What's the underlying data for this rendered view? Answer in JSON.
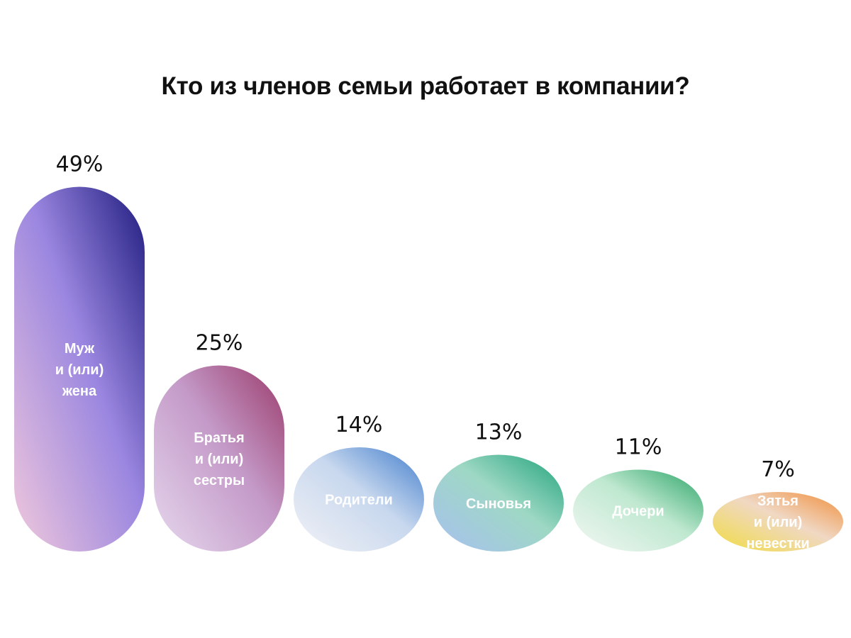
{
  "title": "Кто из членов семьи работает в компании?",
  "chart_data": {
    "type": "bar",
    "unit": "%",
    "categories": [
      "Муж и (или) жена",
      "Братья и (или) сестры",
      "Родители",
      "Сыновья",
      "Дочери",
      "Зятья и (или) невестки"
    ],
    "values": [
      49,
      25,
      14,
      13,
      11,
      7
    ],
    "value_labels": [
      "49%",
      "25%",
      "14%",
      "13%",
      "11%",
      "7%"
    ],
    "category_lines": [
      [
        "Муж",
        "и (или)",
        "жена"
      ],
      [
        "Братья",
        "и (или)",
        "сестры"
      ],
      [
        "Родители"
      ],
      [
        "Сыновья"
      ],
      [
        "Дочери"
      ],
      [
        "Зятья",
        "и (или)",
        "невестки"
      ]
    ],
    "colors": [
      {
        "light": "#f0c8dc",
        "mid": "#9a86e0",
        "dark": "#1e1b7e"
      },
      {
        "light": "#e6d8ee",
        "mid": "#c49ac8",
        "dark": "#9a3a6a"
      },
      {
        "light": "#f2f2f6",
        "mid": "#c8d8ee",
        "dark": "#3f7ccc"
      },
      {
        "light": "#a8c0f0",
        "mid": "#9ed8c4",
        "dark": "#1ea27a"
      },
      {
        "light": "#f4f8f4",
        "mid": "#bfe8d0",
        "dark": "#2aa466"
      },
      {
        "light": "#f0dc40",
        "mid": "#f0d8c4",
        "dark": "#f08c38"
      }
    ]
  }
}
